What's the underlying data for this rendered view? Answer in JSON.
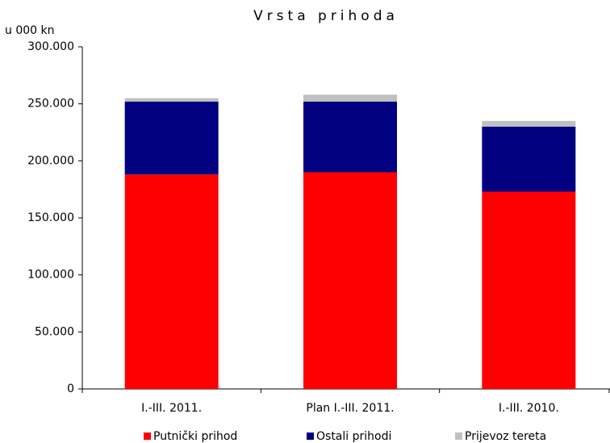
{
  "chart_data": {
    "type": "stacked_bar",
    "title": "Vrsta prihoda",
    "y_label": "u 000 kn",
    "categories": [
      "I.-III. 2011.",
      "Plan I.-III. 2011.",
      "I.-III. 2010."
    ],
    "series": [
      {
        "name": "Putnički prihod",
        "color": "#ff0000",
        "values": [
          188000,
          190000,
          173000
        ]
      },
      {
        "name": "Ostali prihodi",
        "color": "#000080",
        "values": [
          64000,
          62000,
          57000
        ]
      },
      {
        "name": "Prijevoz tereta",
        "color": "#c0c0c0",
        "values": [
          3000,
          6000,
          5000
        ]
      }
    ],
    "ylim": [
      0,
      300000
    ],
    "yticks": [
      0,
      {
        "value": 50000,
        "label": "50.000"
      },
      {
        "value": 100000,
        "label": "100.000"
      },
      {
        "value": 150000,
        "label": "150.000"
      },
      {
        "value": 200000,
        "label": "200.000"
      },
      {
        "value": 250000,
        "label": "250.000"
      },
      {
        "value": 300000,
        "label": "300.000"
      }
    ],
    "legend": "bottom"
  }
}
